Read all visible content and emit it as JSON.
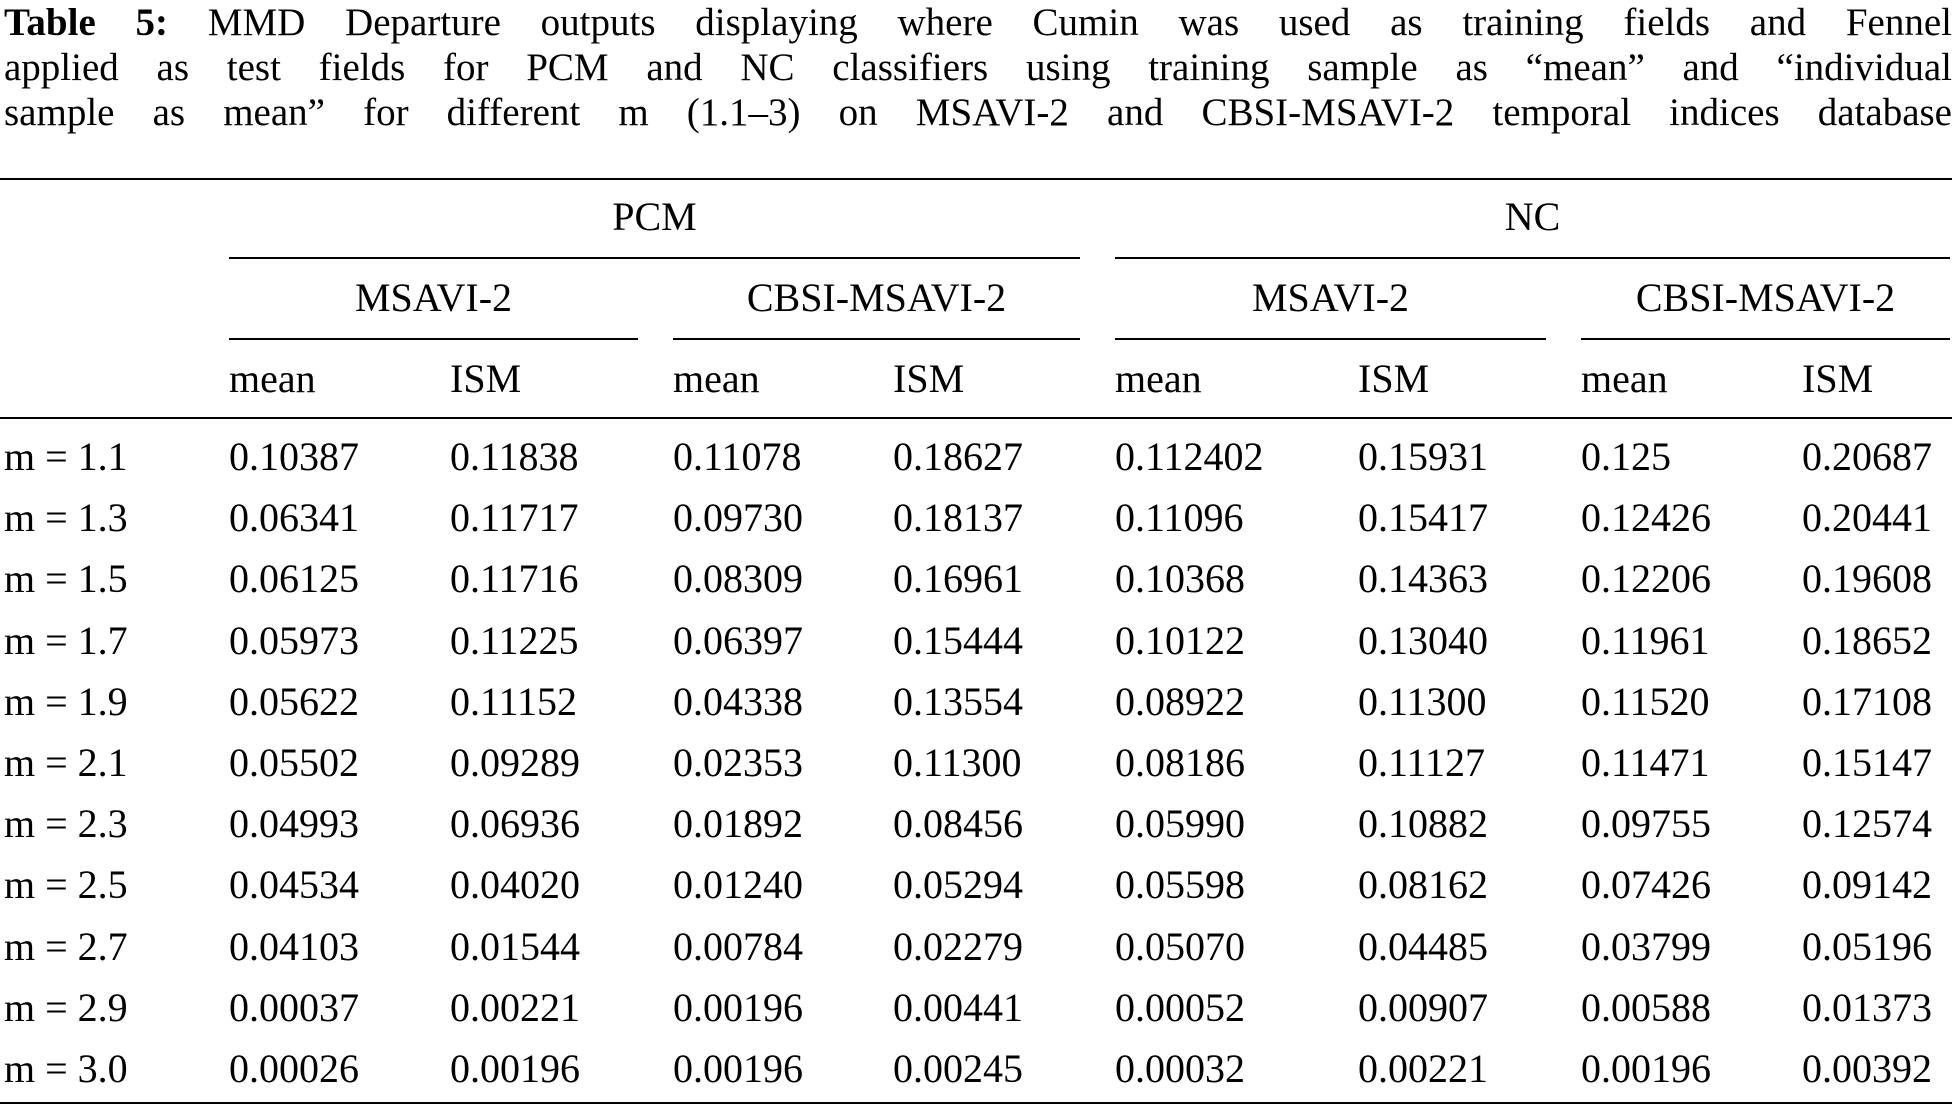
{
  "caption": {
    "label": "Table 5:",
    "lines": [
      "MMD Departure outputs displaying where Cumin was used as training fields and Fennel",
      "applied as test fields for PCM and NC classifiers using training sample as “mean” and “individual",
      "sample as mean” for different m (1.1–3) on MSAVI-2 and CBSI-MSAVI-2 temporal indices database"
    ]
  },
  "table": {
    "groups": [
      "PCM",
      "NC"
    ],
    "subgroups": [
      "MSAVI-2",
      "CBSI-MSAVI-2",
      "MSAVI-2",
      "CBSI-MSAVI-2"
    ],
    "columns": [
      "mean",
      "ISM",
      "mean",
      "ISM",
      "mean",
      "ISM",
      "mean",
      "ISM"
    ],
    "rows": [
      {
        "label": "m = 1.1",
        "values": [
          "0.10387",
          "0.11838",
          "0.11078",
          "0.18627",
          "0.112402",
          "0.15931",
          "0.125",
          "0.20687"
        ]
      },
      {
        "label": "m = 1.3",
        "values": [
          "0.06341",
          "0.11717",
          "0.09730",
          "0.18137",
          "0.11096",
          "0.15417",
          "0.12426",
          "0.20441"
        ]
      },
      {
        "label": "m = 1.5",
        "values": [
          "0.06125",
          "0.11716",
          "0.08309",
          "0.16961",
          "0.10368",
          "0.14363",
          "0.12206",
          "0.19608"
        ]
      },
      {
        "label": "m = 1.7",
        "values": [
          "0.05973",
          "0.11225",
          "0.06397",
          "0.15444",
          "0.10122",
          "0.13040",
          "0.11961",
          "0.18652"
        ]
      },
      {
        "label": "m = 1.9",
        "values": [
          "0.05622",
          "0.11152",
          "0.04338",
          "0.13554",
          "0.08922",
          "0.11300",
          "0.11520",
          "0.17108"
        ]
      },
      {
        "label": "m = 2.1",
        "values": [
          "0.05502",
          "0.09289",
          "0.02353",
          "0.11300",
          "0.08186",
          "0.11127",
          "0.11471",
          "0.15147"
        ]
      },
      {
        "label": "m = 2.3",
        "values": [
          "0.04993",
          "0.06936",
          "0.01892",
          "0.08456",
          "0.05990",
          "0.10882",
          "0.09755",
          "0.12574"
        ]
      },
      {
        "label": "m = 2.5",
        "values": [
          "0.04534",
          "0.04020",
          "0.01240",
          "0.05294",
          "0.05598",
          "0.08162",
          "0.07426",
          "0.09142"
        ]
      },
      {
        "label": "m = 2.7",
        "values": [
          "0.04103",
          "0.01544",
          "0.00784",
          "0.02279",
          "0.05070",
          "0.04485",
          "0.03799",
          "0.05196"
        ]
      },
      {
        "label": "m = 2.9",
        "values": [
          "0.00037",
          "0.00221",
          "0.00196",
          "0.00441",
          "0.00052",
          "0.00907",
          "0.00588",
          "0.01373"
        ]
      },
      {
        "label": "m = 3.0",
        "values": [
          "0.00026",
          "0.00196",
          "0.00196",
          "0.00245",
          "0.00032",
          "0.00221",
          "0.00196",
          "0.00392"
        ]
      }
    ]
  }
}
